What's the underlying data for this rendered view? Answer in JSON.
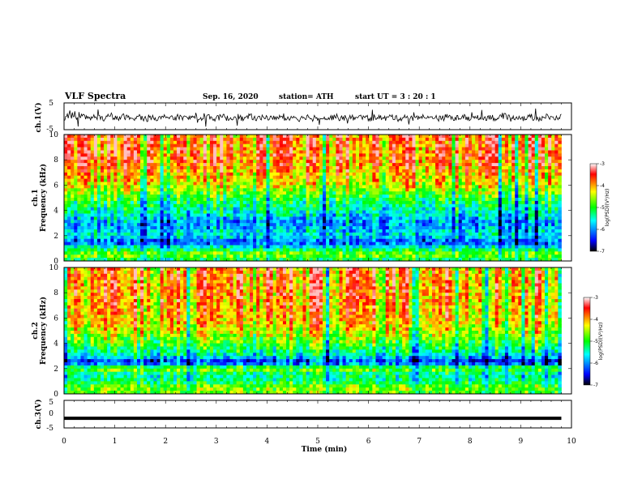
{
  "header": {
    "title": "VLF Spectra",
    "date": "Sep. 16, 2020",
    "station": "station= ATH",
    "start": "start  UT  =   3  : 20 : 1"
  },
  "chart_data": [
    {
      "type": "line",
      "panel": "ch1-waveform",
      "ylabel": "ch.1(V)",
      "ylim": [
        -5,
        5
      ],
      "yticks": [
        "5",
        "-5"
      ],
      "xlim": [
        0,
        10
      ],
      "color": "#000000",
      "description": "noisy waveform centered near -0.5 V spanning roughly -2 to +2 V"
    },
    {
      "type": "heatmap",
      "panel": "ch1-spectrogram",
      "ylabel": "ch.1\nFrequency  (kHz)",
      "ylabel_line1": "ch.1",
      "ylabel_line2": "Frequency  (kHz)",
      "ylim": [
        0,
        10
      ],
      "yticks": [
        "0",
        "2",
        "4",
        "6",
        "8",
        "10"
      ],
      "xlim": [
        0,
        9.8
      ],
      "colorbar": {
        "label": "log(PSD)(V²/Hz)",
        "ticks": [
          "-3",
          "-4",
          "-5",
          "-6",
          "-7"
        ],
        "range": [
          -7,
          -3
        ],
        "colors": [
          "#000000",
          "#0000ff",
          "#00ffff",
          "#00ff00",
          "#ffff00",
          "#ff0000",
          "#ffffff"
        ]
      },
      "profile_khz": [
        0,
        0.5,
        1,
        1.5,
        2,
        2.5,
        3,
        4,
        5,
        6,
        8,
        10
      ],
      "profile_log_psd": [
        -5.3,
        -4.6,
        -5.4,
        -6.3,
        -5.6,
        -5.8,
        -6.0,
        -5.4,
        -5.0,
        -4.3,
        -3.7,
        -3.7
      ]
    },
    {
      "type": "heatmap",
      "panel": "ch2-spectrogram",
      "ylabel_line1": "ch.2",
      "ylabel_line2": "Frequency  (kHz)",
      "ylim": [
        0,
        10
      ],
      "yticks": [
        "0",
        "2",
        "4",
        "6",
        "8",
        "10"
      ],
      "xlim": [
        0,
        9.8
      ],
      "colorbar": {
        "label": "log(PSD)(V²/Hz)",
        "ticks": [
          "-3",
          "-4",
          "-5",
          "-6",
          "-7"
        ],
        "range": [
          -7,
          -3
        ]
      },
      "profile_khz": [
        0,
        0.5,
        1,
        1.5,
        2,
        2.5,
        3,
        4,
        5,
        6,
        8,
        10
      ],
      "profile_log_psd": [
        -4.8,
        -4.6,
        -5.2,
        -5.4,
        -4.6,
        -6.4,
        -5.5,
        -4.8,
        -4.3,
        -4.0,
        -3.8,
        -3.8
      ]
    },
    {
      "type": "line",
      "panel": "ch3-waveform",
      "ylabel": "ch.3(V)",
      "ylim": [
        -5,
        5
      ],
      "yticks": [
        "5",
        "0",
        "-5"
      ],
      "xlim": [
        0,
        10
      ],
      "value": -1.5,
      "color": "#000000"
    }
  ],
  "x_axis": {
    "label": "Time  (min)",
    "ticks": [
      "0",
      "1",
      "2",
      "3",
      "4",
      "5",
      "6",
      "7",
      "8",
      "9",
      "10"
    ],
    "range": [
      0,
      10
    ]
  }
}
